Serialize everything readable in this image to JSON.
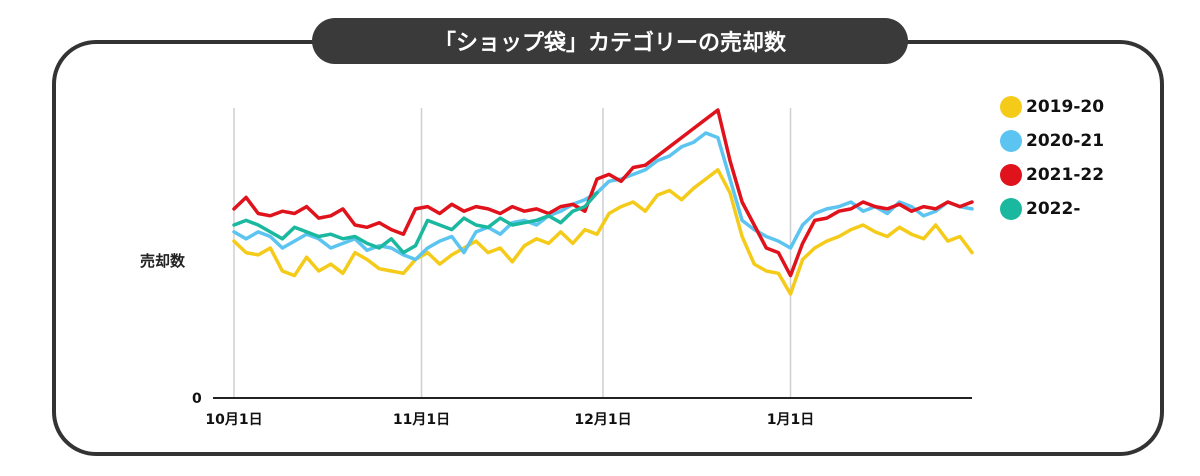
{
  "header": {
    "title": "「ショップ袋」カテゴリーの売却数"
  },
  "chart_data": {
    "type": "line",
    "title": "「ショップ袋」カテゴリーの売却数",
    "xlabel": "",
    "ylabel": "売却数",
    "x_ticks": [
      {
        "label": "10月1日",
        "day": 0
      },
      {
        "label": "11月1日",
        "day": 31
      },
      {
        "label": "12月1日",
        "day": 61
      },
      {
        "label": "1月1日",
        "day": 92
      }
    ],
    "x_range_days": [
      0,
      122
    ],
    "y_zero_label": "0",
    "ylim": [
      0,
      100
    ],
    "grid": "vertical",
    "legend_position": "right",
    "series": [
      {
        "name": "2019-20",
        "color": "#F5CB1A",
        "x": [
          0,
          2,
          4,
          6,
          8,
          10,
          12,
          14,
          16,
          18,
          20,
          22,
          24,
          26,
          28,
          30,
          32,
          34,
          36,
          38,
          40,
          42,
          44,
          46,
          48,
          50,
          52,
          54,
          56,
          58,
          60,
          62,
          64,
          66,
          68,
          70,
          72,
          74,
          76,
          78,
          80,
          82,
          84,
          86,
          88,
          90,
          92,
          94,
          96,
          98,
          100,
          102,
          104,
          106,
          108,
          110,
          112,
          114,
          116,
          118,
          120,
          122
        ],
        "values": [
          43,
          38,
          37,
          40,
          30,
          28,
          36,
          30,
          33,
          29,
          38,
          35,
          31,
          30,
          29,
          35,
          38,
          33,
          37,
          40,
          43,
          38,
          40,
          34,
          41,
          44,
          42,
          47,
          42,
          48,
          46,
          55,
          58,
          60,
          56,
          63,
          65,
          61,
          66,
          70,
          74,
          64,
          45,
          33,
          30,
          29,
          20,
          35,
          40,
          43,
          45,
          48,
          50,
          47,
          45,
          49,
          46,
          44,
          50,
          43,
          45,
          38
        ]
      },
      {
        "name": "2020-21",
        "color": "#5BC4F0",
        "x": [
          0,
          2,
          4,
          6,
          8,
          10,
          12,
          14,
          16,
          18,
          20,
          22,
          24,
          26,
          28,
          30,
          32,
          34,
          36,
          38,
          40,
          42,
          44,
          46,
          48,
          50,
          52,
          54,
          56,
          58,
          60,
          62,
          64,
          66,
          68,
          70,
          72,
          74,
          76,
          78,
          80,
          82,
          84,
          86,
          88,
          90,
          92,
          94,
          96,
          98,
          100,
          102,
          104,
          106,
          108,
          110,
          112,
          114,
          116,
          118,
          120,
          122
        ],
        "values": [
          47,
          44,
          47,
          45,
          40,
          43,
          46,
          44,
          40,
          42,
          44,
          39,
          41,
          40,
          37,
          35,
          40,
          43,
          45,
          38,
          47,
          49,
          46,
          51,
          52,
          50,
          54,
          56,
          59,
          61,
          64,
          69,
          70,
          72,
          74,
          78,
          80,
          84,
          86,
          90,
          88,
          70,
          52,
          48,
          45,
          43,
          40,
          50,
          55,
          57,
          58,
          60,
          56,
          58,
          55,
          60,
          58,
          54,
          56,
          60,
          58,
          57
        ]
      },
      {
        "name": "2021-22",
        "color": "#E0121C",
        "x": [
          0,
          2,
          4,
          6,
          8,
          10,
          12,
          14,
          16,
          18,
          20,
          22,
          24,
          26,
          28,
          30,
          32,
          34,
          36,
          38,
          40,
          42,
          44,
          46,
          48,
          50,
          52,
          54,
          56,
          58,
          60,
          62,
          64,
          66,
          68,
          70,
          72,
          74,
          76,
          78,
          80,
          82,
          84,
          86,
          88,
          90,
          92,
          94,
          96,
          98,
          100,
          102,
          104,
          106,
          108,
          110,
          112,
          114,
          116,
          118,
          120,
          122
        ],
        "values": [
          57,
          62,
          55,
          54,
          56,
          55,
          58,
          53,
          54,
          57,
          50,
          49,
          51,
          48,
          46,
          57,
          58,
          55,
          59,
          56,
          58,
          57,
          55,
          58,
          56,
          57,
          55,
          58,
          59,
          56,
          70,
          72,
          69,
          75,
          76,
          80,
          84,
          88,
          92,
          96,
          100,
          78,
          60,
          50,
          40,
          38,
          28,
          42,
          52,
          53,
          56,
          57,
          60,
          58,
          57,
          59,
          56,
          58,
          57,
          60,
          58,
          60
        ]
      },
      {
        "name": "2022-",
        "color": "#1BB8A0",
        "x": [
          0,
          2,
          4,
          6,
          8,
          10,
          12,
          14,
          16,
          18,
          20,
          22,
          24,
          26,
          28,
          30,
          32,
          34,
          36,
          38,
          40,
          42,
          44,
          46,
          48,
          50,
          52,
          54,
          56,
          58,
          60
        ],
        "values": [
          50,
          52,
          50,
          47,
          44,
          49,
          47,
          45,
          46,
          44,
          45,
          42,
          40,
          44,
          38,
          41,
          52,
          50,
          48,
          53,
          50,
          49,
          53,
          50,
          51,
          52,
          54,
          51,
          56,
          58,
          64
        ]
      }
    ]
  }
}
